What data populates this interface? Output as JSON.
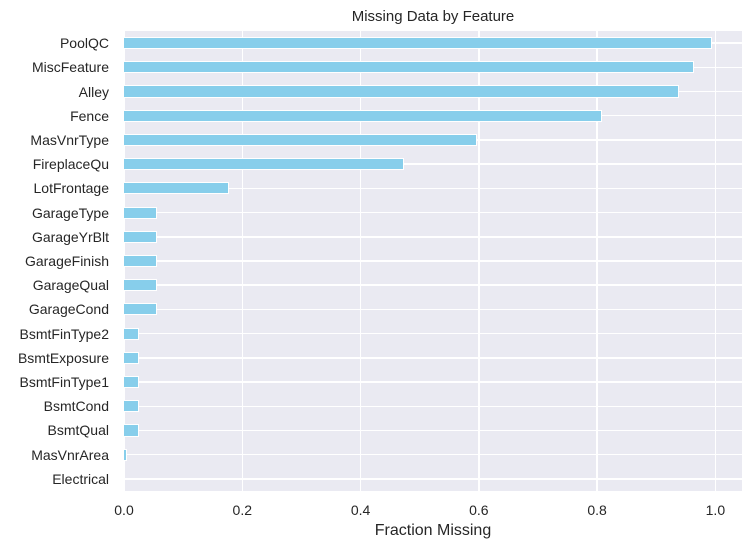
{
  "chart_data": {
    "type": "bar",
    "orientation": "horizontal",
    "title": "Missing Data by Feature",
    "xlabel": "Fraction Missing",
    "ylabel": "",
    "xlim": [
      0,
      1.045
    ],
    "xticks": [
      "0.0",
      "0.2",
      "0.4",
      "0.6",
      "0.8",
      "1.0"
    ],
    "grid": true,
    "bar_color": "#87ceeb",
    "background_color": "#eaeaf2",
    "categories": [
      "PoolQC",
      "MiscFeature",
      "Alley",
      "Fence",
      "MasVnrType",
      "FireplaceQu",
      "LotFrontage",
      "GarageType",
      "GarageYrBlt",
      "GarageFinish",
      "GarageQual",
      "GarageCond",
      "BsmtFinType2",
      "BsmtExposure",
      "BsmtFinType1",
      "BsmtCond",
      "BsmtQual",
      "MasVnrArea",
      "Electrical"
    ],
    "values": [
      0.995,
      0.963,
      0.938,
      0.808,
      0.597,
      0.473,
      0.177,
      0.055,
      0.055,
      0.055,
      0.055,
      0.055,
      0.026,
      0.026,
      0.025,
      0.025,
      0.025,
      0.005,
      0.001
    ]
  }
}
